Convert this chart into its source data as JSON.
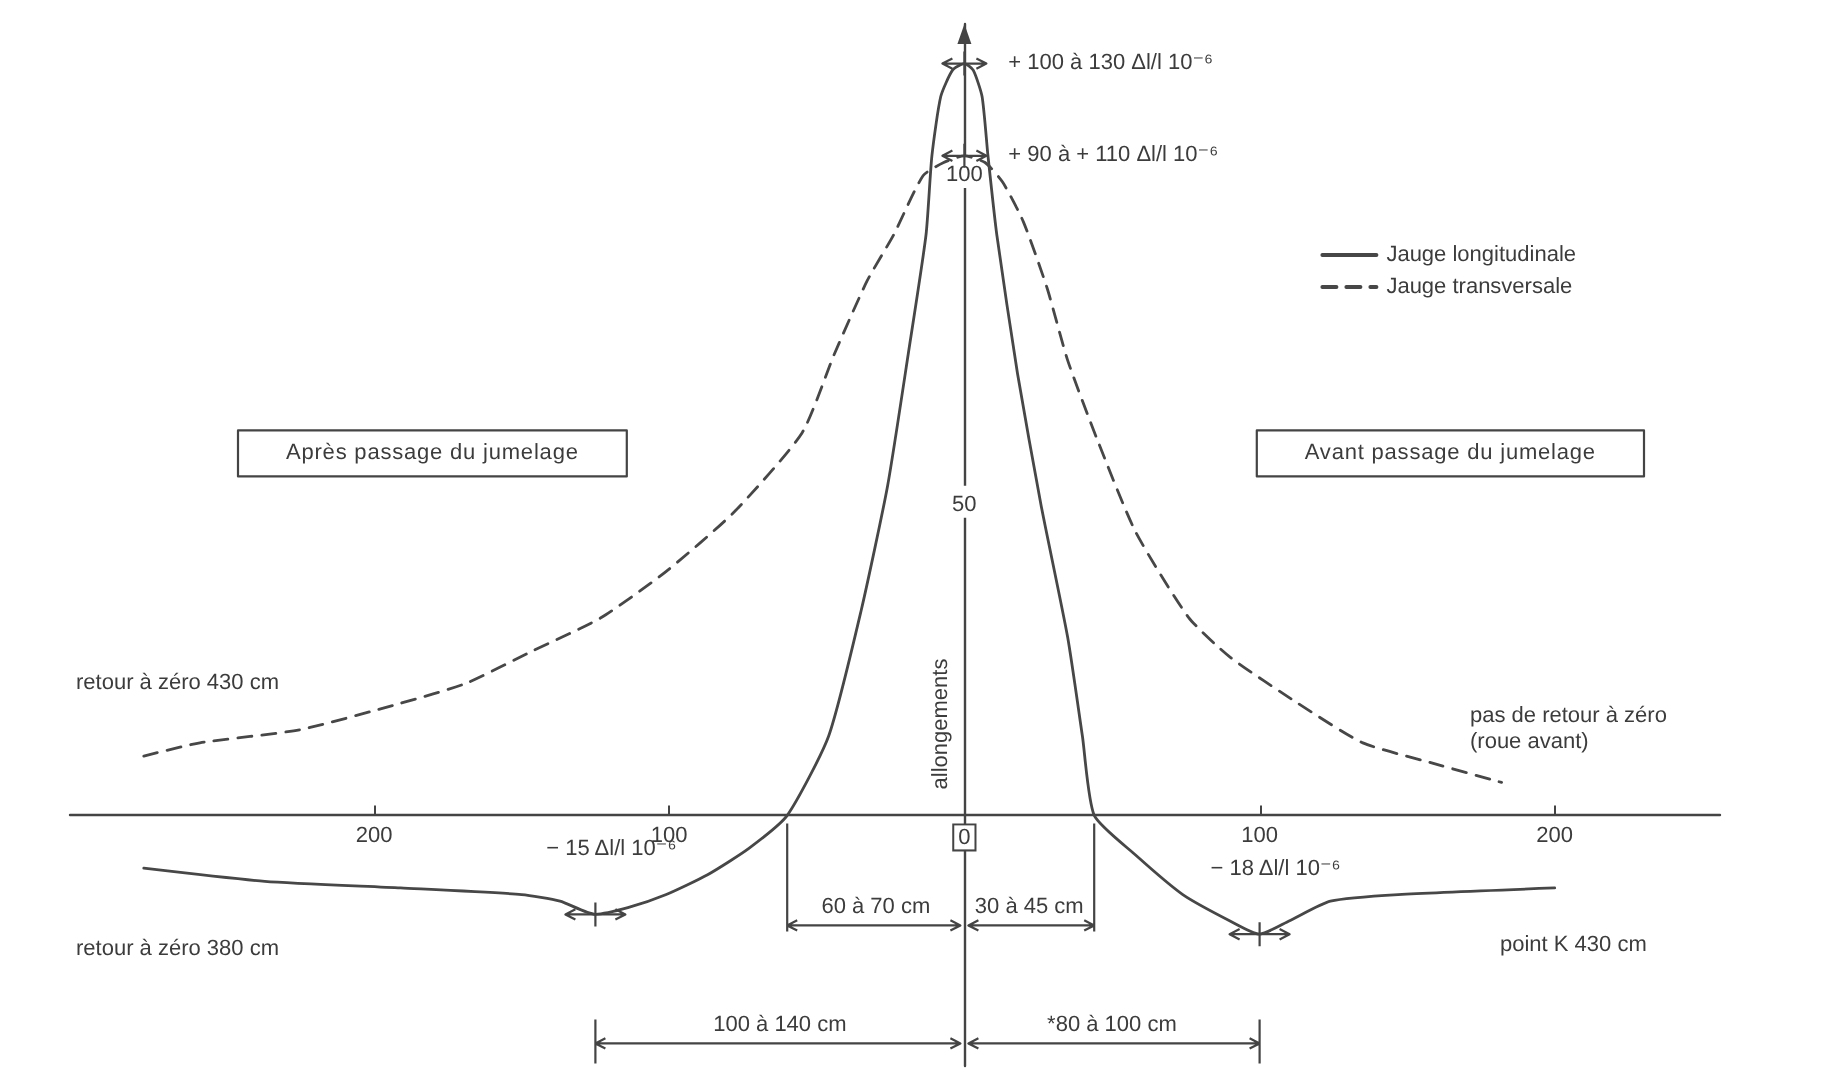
{
  "chart_data": {
    "type": "line",
    "ylabel": "allongements",
    "xlim": [
      -303,
      256
    ],
    "xticks": [
      {
        "value": -200,
        "label": "200"
      },
      {
        "value": -100,
        "label": "100"
      },
      0,
      100,
      200
    ],
    "ylim": [
      -38,
      120
    ],
    "yticks": [
      50,
      100
    ],
    "grid": false,
    "legend": "top right",
    "marker": "none",
    "series": [
      {
        "name": "Jauge longitudinale",
        "color": "#474747",
        "line_style": "solid",
        "x": [
          -278,
          -237,
          -191,
          -150,
          -137,
          -125,
          -114,
          -101,
          -87,
          -73,
          -60,
          -46,
          -35,
          -26,
          -19,
          -13,
          -11,
          -8,
          -4,
          0,
          3,
          6,
          8,
          11,
          18,
          26,
          35,
          40,
          44,
          58,
          74,
          90,
          100,
          110,
          124,
          147,
          200
        ],
        "values": [
          -8,
          -10,
          -11,
          -12,
          -13,
          -15,
          -14,
          -12,
          -9,
          -5,
          0,
          12,
          31,
          50,
          70,
          88,
          100,
          109,
          113,
          114,
          113,
          109,
          100,
          88,
          67,
          47,
          27,
          12,
          0,
          -6,
          -12,
          -16,
          -18,
          -16,
          -13,
          -12,
          -11
        ]
      },
      {
        "name": "Jauge transversale",
        "color": "#474747",
        "line_style": "dashed",
        "x": [
          -278,
          -259,
          -225,
          -191,
          -169,
          -146,
          -123,
          -101,
          -78,
          -55,
          -44,
          -33,
          -24,
          -14,
          -7,
          0,
          7,
          13,
          20,
          28,
          35,
          45,
          58,
          76,
          90,
          113,
          135,
          158,
          182
        ],
        "values": [
          9,
          11,
          13,
          17,
          20,
          25,
          30,
          37,
          46,
          58,
          70,
          81,
          88,
          97,
          99,
          100,
          99,
          96,
          90,
          80,
          69,
          57,
          43,
          30,
          24,
          17,
          11,
          8,
          5
        ]
      }
    ],
    "annotations": [
      "Après passage du jumelage",
      "Avant passage du jumelage",
      "60 à 70 cm",
      "100 à 140 cm",
      "*80 à 100 cm",
      "retour à zéro 430 cm",
      "retour à zéro 380 cm",
      "pas de retour à zéro\n(roue avant)",
      "point K 430 cm",
      {
        "text": "30 à 45 cm",
        "x": 44,
        "y": 0
      },
      {
        "text": "+ 100 à 130 Δl/l 10⁻⁶",
        "x": 0,
        "y": 114
      },
      {
        "text": "+ 90 à + 110 Δl/l 10⁻⁶",
        "x": 0,
        "y": 100
      },
      {
        "text": "− 15 Δl/l 10⁻⁶",
        "x": -125,
        "y": -15
      },
      {
        "text": "− 18 Δl/l 10⁻⁶",
        "x": 100,
        "y": -18
      }
    ]
  }
}
